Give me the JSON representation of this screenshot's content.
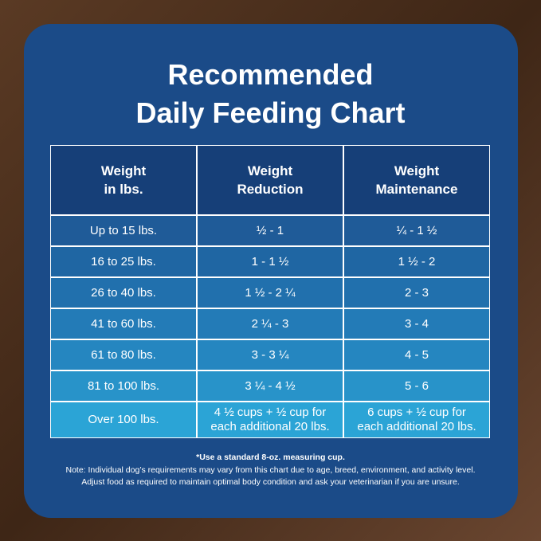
{
  "header": {
    "title": [
      "Recommended",
      "Daily Feeding Chart"
    ]
  },
  "table": {
    "headers": [
      [
        "Weight",
        "in lbs."
      ],
      [
        "Weight",
        "Reduction"
      ],
      [
        "Weight",
        "Maintenance"
      ]
    ],
    "rows": [
      [
        [
          "Up to 15 lbs."
        ],
        [
          "½ - 1"
        ],
        [
          "¼ - 1 ½"
        ]
      ],
      [
        [
          "16 to 25 lbs."
        ],
        [
          "1 - 1 ½"
        ],
        [
          "1 ½ - 2"
        ]
      ],
      [
        [
          "26 to 40 lbs."
        ],
        [
          "1 ½ - 2 ¼"
        ],
        [
          "2 - 3"
        ]
      ],
      [
        [
          "41 to 60 lbs."
        ],
        [
          "2 ¼ - 3"
        ],
        [
          "3 - 4"
        ]
      ],
      [
        [
          "61 to 80 lbs."
        ],
        [
          "3 - 3 ¼"
        ],
        [
          "4 - 5"
        ]
      ],
      [
        [
          "81 to 100 lbs."
        ],
        [
          "3 ¼ - 4 ½"
        ],
        [
          "5 - 6"
        ]
      ],
      [
        [
          "Over 100 lbs."
        ],
        [
          "4 ½ cups  + ½ cup for",
          "each additional 20 lbs."
        ],
        [
          "6 cups  + ½ cup for",
          "each additional 20 lbs."
        ]
      ]
    ]
  },
  "footnote": {
    "lines": [
      "*Use a standard 8-oz. measuring cup.",
      "Note: Individual dog’s requirements may vary from this chart due to age, breed, environment, and activity level.",
      "Adjust food as required to maintain optimal body condition and ask your veterinarian if you are unsure."
    ]
  }
}
